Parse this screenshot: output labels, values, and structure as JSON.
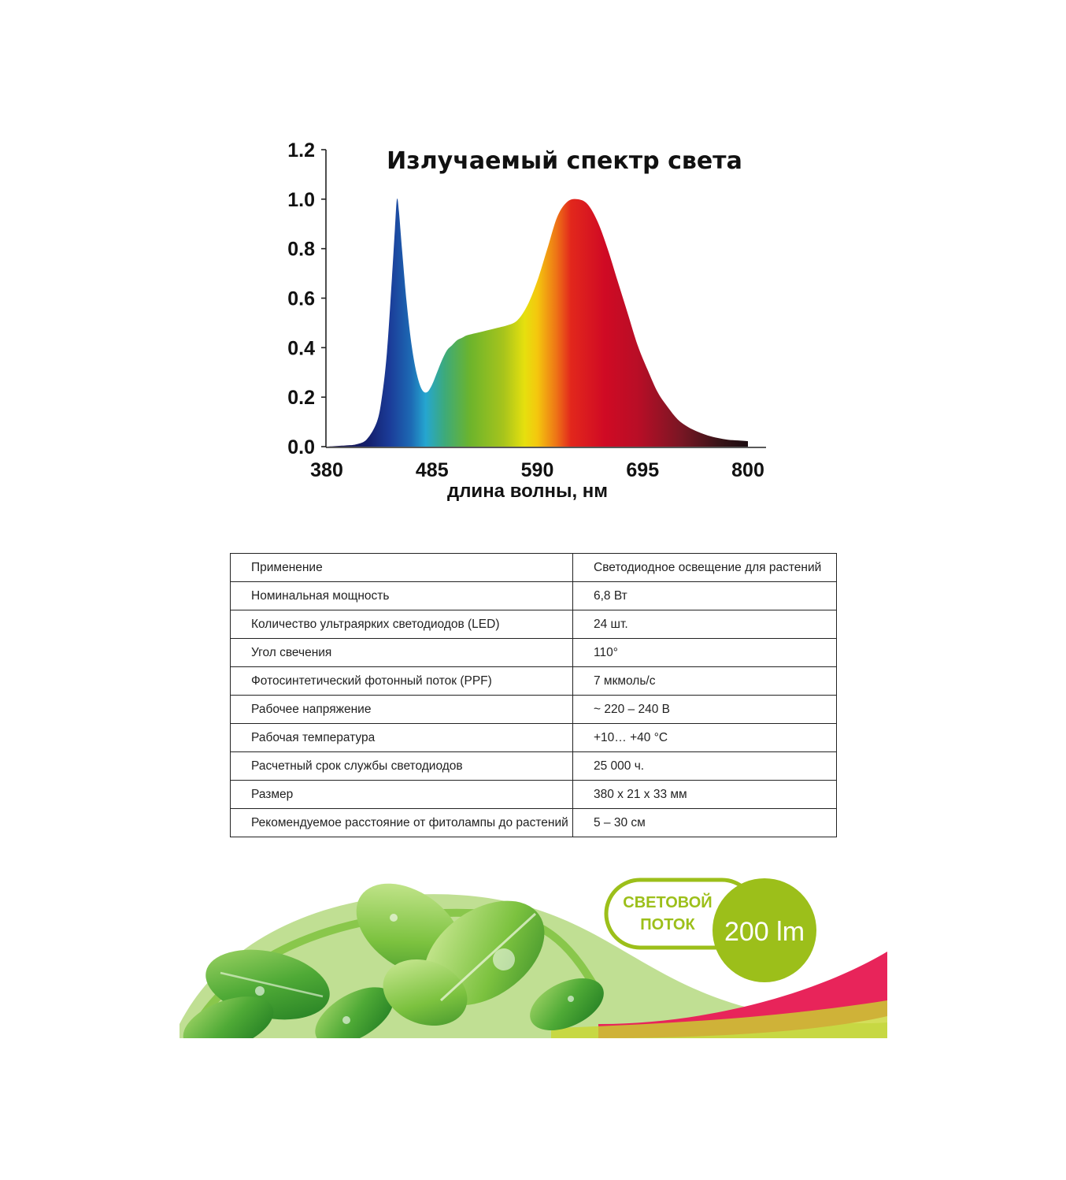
{
  "chart_data": {
    "type": "area",
    "title": "Излучаемый спектр света",
    "xlabel": "длина волны, нм",
    "ylabel": "",
    "xlim": [
      380,
      800
    ],
    "ylim": [
      0,
      1.2
    ],
    "x_ticks": [
      "380",
      "485",
      "590",
      "695",
      "800"
    ],
    "y_ticks": [
      "0.0",
      "0.2",
      "0.4",
      "0.6",
      "0.8",
      "1.0",
      "1.2"
    ],
    "grid": false,
    "x": [
      380,
      400,
      410,
      420,
      430,
      435,
      440,
      445,
      448,
      450,
      452,
      455,
      460,
      465,
      470,
      475,
      480,
      485,
      490,
      495,
      500,
      505,
      510,
      515,
      520,
      530,
      540,
      550,
      560,
      570,
      580,
      590,
      600,
      610,
      620,
      630,
      640,
      650,
      660,
      670,
      680,
      690,
      700,
      710,
      720,
      730,
      740,
      750,
      760,
      770,
      780,
      790,
      800
    ],
    "y": [
      0.0,
      0.005,
      0.01,
      0.03,
      0.1,
      0.2,
      0.38,
      0.68,
      0.88,
      1.0,
      0.95,
      0.8,
      0.57,
      0.4,
      0.29,
      0.23,
      0.22,
      0.25,
      0.3,
      0.35,
      0.39,
      0.41,
      0.43,
      0.44,
      0.45,
      0.46,
      0.47,
      0.48,
      0.49,
      0.51,
      0.57,
      0.67,
      0.8,
      0.93,
      0.99,
      1.0,
      0.98,
      0.91,
      0.8,
      0.67,
      0.54,
      0.41,
      0.31,
      0.22,
      0.16,
      0.11,
      0.08,
      0.06,
      0.045,
      0.035,
      0.028,
      0.025,
      0.022
    ]
  },
  "table": {
    "rows": [
      [
        "Применение",
        "Светодиодное освещение для растений"
      ],
      [
        "Номинальная мощность",
        "6,8 Вт"
      ],
      [
        "Количество ультраярких светодиодов (LED)",
        "24 шт."
      ],
      [
        "Угол свечения",
        "110°"
      ],
      [
        "Фотосинтетический фотонный поток (PPF)",
        "7 мкмоль/с"
      ],
      [
        "Рабочее напряжение",
        "~ 220 – 240 В"
      ],
      [
        "Рабочая температура",
        "+10… +40 °C"
      ],
      [
        "Расчетный срок службы светодиодов",
        "25 000 ч."
      ],
      [
        "Размер",
        "380 х 21 х 33 мм"
      ],
      [
        "Рекомендуемое расстояние от фитолампы до растений",
        "5 – 30 см"
      ]
    ]
  },
  "badge": {
    "line1": "СВЕТОВОЙ",
    "line2": "ПОТОК",
    "value": "200 lm"
  },
  "colors": {
    "green": "#9cbf1a",
    "leaf": "#3d9a2c",
    "pink": "#e8245a"
  }
}
